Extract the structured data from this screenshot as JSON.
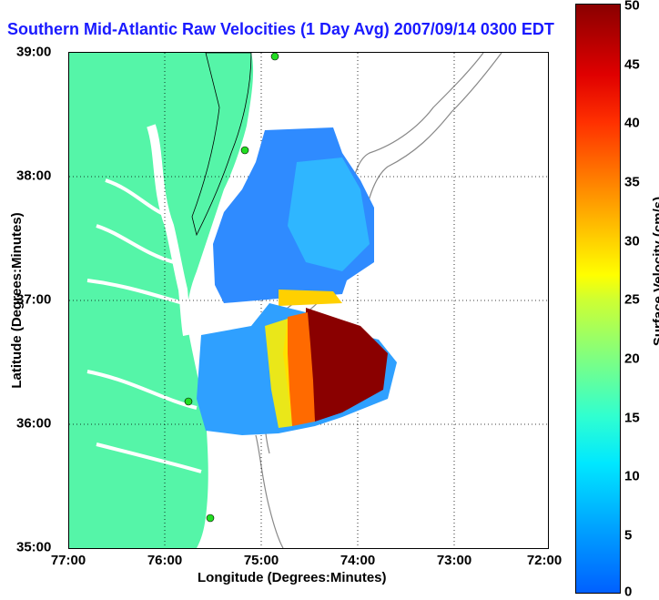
{
  "title": "Southern Mid-Atlantic Raw Velocities (1 Day Avg) 2007/09/14 0300 EDT",
  "xaxis": {
    "label": "Longitude (Degrees:Minutes)",
    "ticks": [
      "77:00",
      "76:00",
      "75:00",
      "74:00",
      "73:00",
      "72:00"
    ]
  },
  "yaxis": {
    "label": "Latitude (Degrees:Minutes)",
    "ticks": [
      "39:00",
      "38:00",
      "37:00",
      "36:00",
      "35:00"
    ]
  },
  "colorbar": {
    "label": "Surface Velocity (cm/s)",
    "ticks": [
      "50",
      "45",
      "40",
      "35",
      "30",
      "25",
      "20",
      "15",
      "10",
      "5",
      "0"
    ],
    "range": [
      0,
      50
    ]
  },
  "colors": {
    "land": "#55f5a8",
    "water": "#ffffff",
    "title": "#1a1aff",
    "station": "#22dd22"
  }
}
